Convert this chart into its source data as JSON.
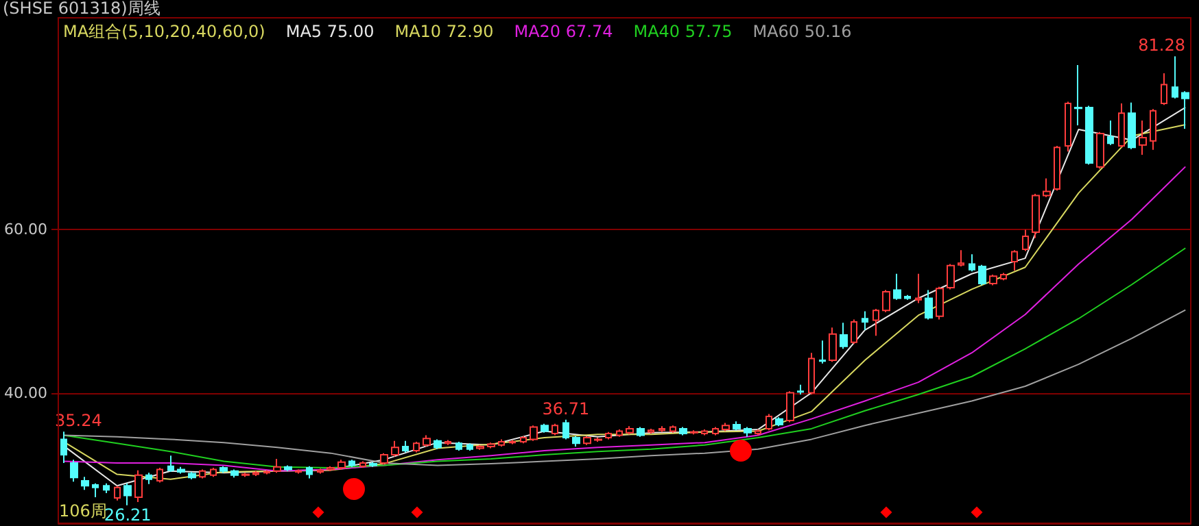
{
  "chart_data": {
    "type": "candlestick",
    "title": "(SHSE 601318)周线",
    "legend_title": "MA组合(5,10,20,40,60,0)",
    "annotations": [
      {
        "text": "35.24",
        "y": 35.24
      },
      {
        "text": "36.71",
        "y": 36.71
      },
      {
        "text": "26.21",
        "y": 26.21
      },
      "81.28",
      "106周"
    ],
    "categories": [
      null,
      null,
      null,
      null,
      null,
      null,
      null,
      null,
      null,
      null,
      null,
      null,
      null,
      null,
      null,
      null,
      null,
      null,
      null,
      null,
      null,
      null,
      null,
      null,
      null,
      null,
      null,
      null,
      null,
      null,
      null,
      null,
      null,
      null,
      null,
      null,
      null,
      null,
      null,
      null,
      null,
      null,
      null,
      null,
      null,
      null,
      null,
      null,
      null,
      null,
      null,
      null,
      null,
      null,
      null,
      null,
      null,
      null,
      null,
      null,
      null,
      null,
      null,
      null,
      null,
      null,
      null,
      null,
      null,
      null,
      null,
      null,
      null,
      null,
      null,
      null,
      null,
      null,
      null,
      null,
      null,
      null,
      null,
      null,
      null,
      null,
      null,
      null,
      null,
      null,
      null,
      null,
      null,
      null,
      null,
      null,
      null,
      null,
      null,
      null,
      null,
      null,
      null,
      null,
      null,
      null
    ],
    "ohlc": [
      [
        34.3,
        35.24,
        31.4,
        32.4
      ],
      [
        31.4,
        31.8,
        29.1,
        29.6
      ],
      [
        29.2,
        29.7,
        28.1,
        28.6
      ],
      [
        28.7,
        28.9,
        27.2,
        28.4
      ],
      [
        28.6,
        28.9,
        27.7,
        28.1
      ],
      [
        27.1,
        28.6,
        26.8,
        28.4
      ],
      [
        28.6,
        28.9,
        26.21,
        27.4
      ],
      [
        27.2,
        30.5,
        26.6,
        29.9
      ],
      [
        29.9,
        30.2,
        28.8,
        29.4
      ],
      [
        29.2,
        30.8,
        29.0,
        30.6
      ],
      [
        31.0,
        32.3,
        30.3,
        30.5
      ],
      [
        30.6,
        30.9,
        30.1,
        30.3
      ],
      [
        30.1,
        30.3,
        29.4,
        29.6
      ],
      [
        29.7,
        30.6,
        29.5,
        30.4
      ],
      [
        29.9,
        30.8,
        29.7,
        30.6
      ],
      [
        30.8,
        31.0,
        30.2,
        30.4
      ],
      [
        30.4,
        30.6,
        29.6,
        29.9
      ],
      [
        29.9,
        30.2,
        29.7,
        30.0
      ],
      [
        30.0,
        30.4,
        29.8,
        30.2
      ],
      [
        30.2,
        30.5,
        30.0,
        30.3
      ],
      [
        30.4,
        31.9,
        30.2,
        30.9
      ],
      [
        30.9,
        31.1,
        30.4,
        30.6
      ],
      [
        30.3,
        30.6,
        30.1,
        30.4
      ],
      [
        30.8,
        31.0,
        29.5,
        30.0
      ],
      [
        30.3,
        30.7,
        30.1,
        30.5
      ],
      [
        30.6,
        31.0,
        30.4,
        30.8
      ],
      [
        30.8,
        31.8,
        30.6,
        31.5
      ],
      [
        31.6,
        31.8,
        30.9,
        31.1
      ],
      [
        31.0,
        31.6,
        30.8,
        31.4
      ],
      [
        31.3,
        31.5,
        30.9,
        31.1
      ],
      [
        31.4,
        32.6,
        31.2,
        32.4
      ],
      [
        32.4,
        34.1,
        32.2,
        33.3
      ],
      [
        33.4,
        34.1,
        32.7,
        32.9
      ],
      [
        32.9,
        34.0,
        32.7,
        33.8
      ],
      [
        33.6,
        34.8,
        33.4,
        34.4
      ],
      [
        34.1,
        34.3,
        33.1,
        33.3
      ],
      [
        33.8,
        34.2,
        33.6,
        34.0
      ],
      [
        33.8,
        34.0,
        32.9,
        33.1
      ],
      [
        33.6,
        33.8,
        32.9,
        33.1
      ],
      [
        33.2,
        33.6,
        33.0,
        33.4
      ],
      [
        33.4,
        33.9,
        33.2,
        33.7
      ],
      [
        33.6,
        34.3,
        33.4,
        34.0
      ],
      [
        33.9,
        34.2,
        33.7,
        34.0
      ],
      [
        34.0,
        34.7,
        33.8,
        34.5
      ],
      [
        34.3,
        36.0,
        34.1,
        35.8
      ],
      [
        36.0,
        36.2,
        35.1,
        35.3
      ],
      [
        35.0,
        36.2,
        34.8,
        36.0
      ],
      [
        36.3,
        36.71,
        34.3,
        34.5
      ],
      [
        34.5,
        34.7,
        33.4,
        33.8
      ],
      [
        33.8,
        34.7,
        33.6,
        34.5
      ],
      [
        34.2,
        34.5,
        34.0,
        34.3
      ],
      [
        34.5,
        35.2,
        34.3,
        35.0
      ],
      [
        34.8,
        35.5,
        34.6,
        35.3
      ],
      [
        35.1,
        35.9,
        34.9,
        35.6
      ],
      [
        35.6,
        35.8,
        34.6,
        34.8
      ],
      [
        35.2,
        35.6,
        35.0,
        35.4
      ],
      [
        35.4,
        35.9,
        35.2,
        35.6
      ],
      [
        35.3,
        36.0,
        35.1,
        35.8
      ],
      [
        35.6,
        35.8,
        34.8,
        35.0
      ],
      [
        35.1,
        35.4,
        34.9,
        35.2
      ],
      [
        35.0,
        35.5,
        34.8,
        35.3
      ],
      [
        35.0,
        35.8,
        34.8,
        35.6
      ],
      [
        35.5,
        36.3,
        35.3,
        36.0
      ],
      [
        36.1,
        36.5,
        35.4,
        35.6
      ],
      [
        35.6,
        35.8,
        34.6,
        35.1
      ],
      [
        35.0,
        35.5,
        34.8,
        35.3
      ],
      [
        35.6,
        37.4,
        35.4,
        37.1
      ],
      [
        36.8,
        37.0,
        35.9,
        36.1
      ],
      [
        36.6,
        40.2,
        36.4,
        40.0
      ],
      [
        40.2,
        41.0,
        39.8,
        40.1
      ],
      [
        40.0,
        44.9,
        39.8,
        44.2
      ],
      [
        44.0,
        46.4,
        43.6,
        43.9
      ],
      [
        44.0,
        48.0,
        43.8,
        47.2
      ],
      [
        47.1,
        48.6,
        45.4,
        45.7
      ],
      [
        46.2,
        49.0,
        46.0,
        48.7
      ],
      [
        49.1,
        50.0,
        47.7,
        48.7
      ],
      [
        48.9,
        50.3,
        47.0,
        50.1
      ],
      [
        50.1,
        52.6,
        49.9,
        52.4
      ],
      [
        52.6,
        54.6,
        51.4,
        51.6
      ],
      [
        51.8,
        52.0,
        51.4,
        51.6
      ],
      [
        51.4,
        54.6,
        51.0,
        51.6
      ],
      [
        51.6,
        52.6,
        49.0,
        49.2
      ],
      [
        49.4,
        53.0,
        49.0,
        52.8
      ],
      [
        52.9,
        55.8,
        52.7,
        55.6
      ],
      [
        55.7,
        57.5,
        55.5,
        55.9
      ],
      [
        55.8,
        57.0,
        54.9,
        55.1
      ],
      [
        55.5,
        55.7,
        53.2,
        53.4
      ],
      [
        53.4,
        54.5,
        53.2,
        54.3
      ],
      [
        54.0,
        54.7,
        53.8,
        54.5
      ],
      [
        56.1,
        57.5,
        55.0,
        57.3
      ],
      [
        57.6,
        60.0,
        57.4,
        59.2
      ],
      [
        59.7,
        64.4,
        59.0,
        64.2
      ],
      [
        64.2,
        66.3,
        64.0,
        64.7
      ],
      [
        65.0,
        70.3,
        64.8,
        70.1
      ],
      [
        70.3,
        75.7,
        69.6,
        75.5
      ],
      [
        75.0,
        80.2,
        72.8,
        74.9
      ],
      [
        75.0,
        75.2,
        68.0,
        68.2
      ],
      [
        67.7,
        72.0,
        67.5,
        71.8
      ],
      [
        71.4,
        73.4,
        70.4,
        70.6
      ],
      [
        70.3,
        75.5,
        70.1,
        74.3
      ],
      [
        74.3,
        75.6,
        69.9,
        70.1
      ],
      [
        70.4,
        73.4,
        69.2,
        71.3
      ],
      [
        70.9,
        74.8,
        69.8,
        74.6
      ],
      [
        75.5,
        79.2,
        75.3,
        77.8
      ],
      [
        77.5,
        81.28,
        76.1,
        76.3
      ],
      [
        76.8,
        77.0,
        72.4,
        76.1
      ]
    ],
    "colors": [
      "#54fcfc",
      "#54fcfc",
      "#54fcfc",
      "#54fcfc",
      "#54fcfc",
      "#ff3c3c",
      "#54fcfc",
      "#ff3c3c",
      "#54fcfc",
      "#ff3c3c",
      "#54fcfc",
      "#54fcfc",
      "#54fcfc",
      "#ff3c3c",
      "#ff3c3c",
      "#54fcfc",
      "#54fcfc",
      "#ff3c3c",
      "#ff3c3c",
      "#ff3c3c",
      "#ff3c3c",
      "#54fcfc",
      "#ff3c3c",
      "#54fcfc",
      "#ff3c3c",
      "#ff3c3c",
      "#ff3c3c",
      "#54fcfc",
      "#ff3c3c",
      "#54fcfc",
      "#ff3c3c",
      "#ff3c3c",
      "#54fcfc",
      "#ff3c3c",
      "#ff3c3c",
      "#54fcfc",
      "#ff3c3c",
      "#54fcfc",
      "#54fcfc",
      "#ff3c3c",
      "#ff3c3c",
      "#ff3c3c",
      "#ff3c3c",
      "#ff3c3c",
      "#ff3c3c",
      "#54fcfc",
      "#ff3c3c",
      "#54fcfc",
      "#54fcfc",
      "#ff3c3c",
      "#ff3c3c",
      "#ff3c3c",
      "#ff3c3c",
      "#ff3c3c",
      "#54fcfc",
      "#ff3c3c",
      "#ff3c3c",
      "#ff3c3c",
      "#54fcfc",
      "#ff3c3c",
      "#ff3c3c",
      "#ff3c3c",
      "#ff3c3c",
      "#54fcfc",
      "#54fcfc",
      "#ff3c3c",
      "#ff3c3c",
      "#54fcfc",
      "#ff3c3c",
      "#54fcfc",
      "#ff3c3c",
      "#54fcfc",
      "#ff3c3c",
      "#54fcfc",
      "#ff3c3c",
      "#54fcfc",
      "#ff3c3c",
      "#ff3c3c",
      "#54fcfc",
      "#54fcfc",
      "#ff3c3c",
      "#54fcfc",
      "#ff3c3c",
      "#ff3c3c",
      "#ff3c3c",
      "#54fcfc",
      "#54fcfc",
      "#ff3c3c",
      "#ff3c3c",
      "#ff3c3c",
      "#ff3c3c",
      "#ff3c3c",
      "#ff3c3c",
      "#ff3c3c",
      "#ff3c3c",
      "#54fcfc",
      "#54fcfc",
      "#ff3c3c",
      "#54fcfc",
      "#ff3c3c",
      "#54fcfc",
      "#ff3c3c",
      "#ff3c3c",
      "#ff3c3c",
      "#54fcfc",
      "#54fcfc"
    ],
    "series": [
      {
        "name": "MA5 75.00",
        "type": "line",
        "color": "#e8e8e8",
        "values": [
          33.5,
          null,
          null,
          null,
          null,
          28.6,
          null,
          null,
          null,
          null,
          30.4,
          null,
          null,
          null,
          null,
          30.2,
          null,
          null,
          null,
          null,
          30.4,
          null,
          null,
          null,
          null,
          30.6,
          null,
          null,
          null,
          null,
          31.8,
          null,
          null,
          null,
          null,
          33.9,
          null,
          null,
          null,
          null,
          33.6,
          null,
          null,
          null,
          null,
          35.3,
          null,
          null,
          null,
          null,
          34.6,
          null,
          null,
          null,
          null,
          35.1,
          null,
          null,
          null,
          null,
          35.2,
          null,
          null,
          null,
          null,
          35.5,
          null,
          null,
          null,
          null,
          40.0,
          null,
          null,
          null,
          null,
          47.7,
          null,
          null,
          null,
          null,
          51.6,
          null,
          null,
          null,
          null,
          54.6,
          null,
          null,
          null,
          null,
          56.5,
          null,
          null,
          null,
          null,
          72.3,
          null,
          null,
          null,
          null,
          71.0,
          null,
          null,
          null,
          null,
          75.0
        ]
      },
      {
        "name": "MA10 72.90",
        "type": "line",
        "color": "#d8d860",
        "values": [
          34.0,
          null,
          null,
          null,
          null,
          30.0,
          null,
          null,
          null,
          null,
          29.4,
          null,
          null,
          null,
          null,
          30.3,
          null,
          null,
          null,
          null,
          30.4,
          null,
          null,
          null,
          null,
          30.5,
          null,
          null,
          null,
          null,
          31.3,
          null,
          null,
          null,
          null,
          33.2,
          null,
          null,
          null,
          null,
          33.7,
          null,
          null,
          null,
          null,
          34.5,
          null,
          null,
          null,
          null,
          34.9,
          null,
          null,
          null,
          null,
          34.9,
          null,
          null,
          null,
          null,
          35.2,
          null,
          null,
          null,
          null,
          35.3,
          null,
          null,
          null,
          null,
          37.7,
          null,
          null,
          null,
          null,
          44.0,
          null,
          null,
          null,
          null,
          49.5,
          null,
          null,
          null,
          null,
          52.7,
          null,
          null,
          null,
          null,
          55.4,
          null,
          null,
          null,
          null,
          64.5,
          null,
          null,
          null,
          null,
          71.5,
          null,
          null,
          null,
          null,
          72.9
        ]
      },
      {
        "name": "MA20 67.74",
        "type": "line",
        "color": "#e020e0",
        "values": [
          31.6,
          null,
          null,
          null,
          null,
          31.4,
          null,
          null,
          null,
          null,
          31.4,
          null,
          null,
          null,
          null,
          31.1,
          null,
          null,
          null,
          null,
          30.4,
          null,
          null,
          null,
          null,
          30.6,
          null,
          null,
          null,
          null,
          31.1,
          null,
          null,
          null,
          null,
          31.8,
          null,
          null,
          null,
          null,
          32.3,
          null,
          null,
          null,
          null,
          32.9,
          null,
          null,
          null,
          null,
          33.3,
          null,
          null,
          null,
          null,
          33.6,
          null,
          null,
          null,
          null,
          33.9,
          null,
          null,
          null,
          null,
          34.8,
          null,
          null,
          null,
          null,
          36.8,
          null,
          null,
          null,
          null,
          39.0,
          null,
          null,
          null,
          null,
          41.3,
          null,
          null,
          null,
          null,
          44.9,
          null,
          null,
          null,
          null,
          49.6,
          null,
          null,
          null,
          null,
          55.8,
          null,
          null,
          null,
          null,
          61.3,
          null,
          null,
          null,
          null,
          67.74
        ]
      },
      {
        "name": "MA40 57.75",
        "type": "line",
        "color": "#20d020",
        "values": [
          34.8,
          null,
          null,
          null,
          null,
          33.8,
          null,
          null,
          null,
          null,
          32.8,
          null,
          null,
          null,
          null,
          31.6,
          null,
          null,
          null,
          null,
          30.9,
          null,
          null,
          null,
          null,
          30.8,
          null,
          null,
          null,
          null,
          31.1,
          null,
          null,
          null,
          null,
          31.6,
          null,
          null,
          null,
          null,
          31.9,
          null,
          null,
          null,
          null,
          32.4,
          null,
          null,
          null,
          null,
          32.8,
          null,
          null,
          null,
          null,
          33.1,
          null,
          null,
          null,
          null,
          33.6,
          null,
          null,
          null,
          null,
          34.5,
          null,
          null,
          null,
          null,
          35.6,
          null,
          null,
          null,
          null,
          37.8,
          null,
          null,
          null,
          null,
          39.8,
          null,
          null,
          null,
          null,
          42.0,
          null,
          null,
          null,
          null,
          45.4,
          null,
          null,
          null,
          null,
          49.1,
          null,
          null,
          null,
          null,
          53.3,
          null,
          null,
          null,
          null,
          57.75
        ]
      },
      {
        "name": "MA60 50.16",
        "type": "line",
        "color": "#a0a0a0",
        "values": [
          34.8,
          null,
          null,
          null,
          null,
          34.6,
          null,
          null,
          null,
          null,
          34.3,
          null,
          null,
          null,
          null,
          33.9,
          null,
          null,
          null,
          null,
          33.3,
          null,
          null,
          null,
          null,
          32.6,
          null,
          null,
          null,
          null,
          31.4,
          null,
          null,
          null,
          null,
          31.1,
          null,
          null,
          null,
          null,
          31.3,
          null,
          null,
          null,
          null,
          31.6,
          null,
          null,
          null,
          null,
          31.9,
          null,
          null,
          null,
          null,
          32.3,
          null,
          null,
          null,
          null,
          32.6,
          null,
          null,
          null,
          null,
          33.1,
          null,
          null,
          null,
          null,
          34.3,
          null,
          null,
          null,
          null,
          36.0,
          null,
          null,
          null,
          null,
          37.5,
          null,
          null,
          null,
          null,
          39.0,
          null,
          null,
          null,
          null,
          40.8,
          null,
          null,
          null,
          null,
          43.5,
          null,
          null,
          null,
          null,
          46.7,
          null,
          null,
          null,
          null,
          50.16
        ]
      }
    ],
    "ylim": [
      24,
      86
    ],
    "yticks": [
      {
        "value": 40,
        "label": "40.00"
      },
      {
        "value": 60,
        "label": "60.00"
      }
    ],
    "grid": "y",
    "legend": "top left",
    "tick_labels": "y"
  }
}
